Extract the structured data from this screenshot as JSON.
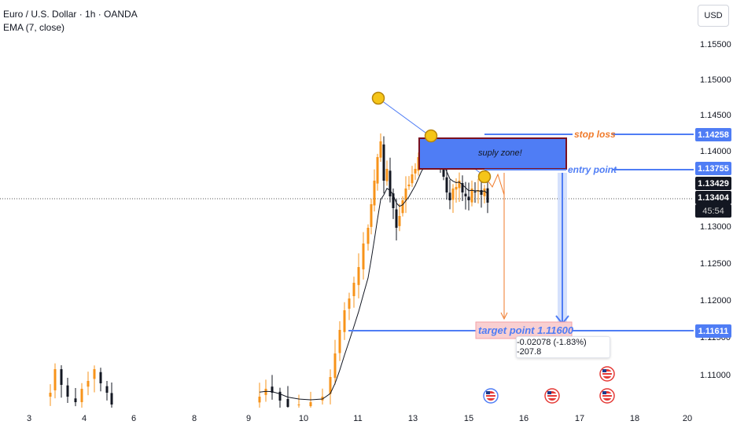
{
  "header": {
    "symbol": "Euro / U.S. Dollar · 1h · OANDA",
    "indicator": "EMA (7, close)"
  },
  "currency_button": "USD",
  "price_axis": [
    "1.15500",
    "1.15000",
    "1.14500",
    "1.14000",
    "1.13000",
    "1.12500",
    "1.12000",
    "1.11500",
    "1.11000"
  ],
  "price_tags": {
    "stop_loss": "1.14258",
    "entry": "1.13755",
    "last_1": "1.13429",
    "last_2": "1.13404",
    "countdown": "45:54",
    "target": "1.11611"
  },
  "time_axis": [
    "3",
    "4",
    "6",
    "8",
    "9",
    "10",
    "11",
    "13",
    "15",
    "16",
    "17",
    "18",
    "20"
  ],
  "annotations": {
    "supply_zone": "suply zone!",
    "stop_loss": "stop loss",
    "entry_point": "entry point",
    "target_point": "target point 1.11600",
    "measure": "-0.02078 (-1.83%) -207.8"
  },
  "colors": {
    "bull": "#f7931a",
    "bear": "#131722",
    "zone_fill": "#4f7df5",
    "zone_border": "#7a1020",
    "line_blue": "#4f7df5",
    "orange": "#f07a2a",
    "tag_dark": "#131722",
    "target_fill": "#f9cfd1"
  },
  "icons": [
    "us-flag-event-icon"
  ]
}
